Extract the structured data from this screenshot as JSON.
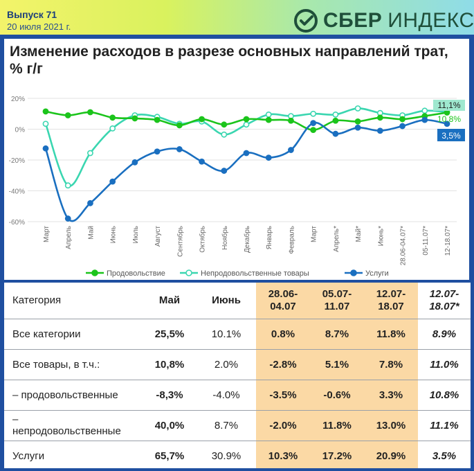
{
  "header": {
    "issue": "Выпуск 71",
    "date": "20 июля 2021 г.",
    "logo_main": "СБЕР",
    "logo_sub": "ИНДЕКС"
  },
  "chart_data": {
    "type": "line",
    "title": "Изменение расходов в разрезе основных направлений трат, % г/г",
    "categories": [
      "Март",
      "Апрель",
      "Май",
      "Июнь",
      "Июль",
      "Август",
      "Сентябрь",
      "Октябрь",
      "Ноябрь",
      "Декабрь",
      "Январь",
      "Февраль",
      "Март",
      "Апрель*",
      "Май*",
      "Июнь*",
      "28.06-04.07*",
      "05-11.07*",
      "12-18.07*"
    ],
    "y_ticks": [
      "20%",
      "0%",
      "-20%",
      "-40%",
      "-60%"
    ],
    "ylim": [
      -60,
      20
    ],
    "grid": "horizontal",
    "legend_position": "bottom",
    "series": [
      {
        "name": "Продовольствие",
        "color": "#1bc41b",
        "values": [
          11.5,
          9.0,
          11.0,
          7.5,
          7.0,
          6.0,
          2.5,
          6.5,
          3.0,
          6.5,
          6.0,
          5.5,
          -0.5,
          5.5,
          5.0,
          7.5,
          6.5,
          8.5,
          10.8
        ],
        "end_label": "10,8%"
      },
      {
        "name": "Непродовольственные товары",
        "color": "#3ad6b0",
        "values": [
          3.5,
          -36.5,
          -15.5,
          0.5,
          9.0,
          8.0,
          3.5,
          5.0,
          -3.5,
          3.0,
          9.5,
          8.5,
          10.0,
          9.5,
          13.5,
          10.5,
          9.0,
          12.0,
          11.1
        ],
        "end_label": "11,1%"
      },
      {
        "name": "Услуги",
        "color": "#1a6fc0",
        "values": [
          -12.5,
          -58.0,
          -48.0,
          -34.0,
          -21.5,
          -14.5,
          -13.0,
          -21.0,
          -27.0,
          -15.5,
          -18.5,
          -13.5,
          4.0,
          -3.0,
          1.0,
          -1.0,
          2.0,
          6.0,
          3.5
        ],
        "end_label": "3,5%"
      }
    ]
  },
  "table": {
    "headers": [
      "Категория",
      "Май",
      "Июнь",
      "28.06-\n04.07",
      "05.07-\n11.07",
      "12.07-\n18.07",
      "12.07-\n18.07*"
    ],
    "rows": [
      {
        "category": "Все категории",
        "values": [
          "25,5%",
          "10.1%",
          "0.8%",
          "8.7%",
          "11.8%",
          "8.9%"
        ]
      },
      {
        "category": "Все товары, в т.ч.:",
        "values": [
          "10,8%",
          "2.0%",
          "-2.8%",
          "5.1%",
          "7.8%",
          "11.0%"
        ]
      },
      {
        "category": "– продовольственные",
        "values": [
          "-8,3%",
          "-4.0%",
          "-3.5%",
          "-0.6%",
          "3.3%",
          "10.8%"
        ]
      },
      {
        "category": "–\nнепродовольственные",
        "values": [
          "40,0%",
          "8.7%",
          "-2.0%",
          "11.8%",
          "13.0%",
          "11.1%"
        ]
      },
      {
        "category": "Услуги",
        "values": [
          "65,7%",
          "30.9%",
          "10.3%",
          "17.2%",
          "20.9%",
          "3.5%"
        ]
      }
    ]
  }
}
